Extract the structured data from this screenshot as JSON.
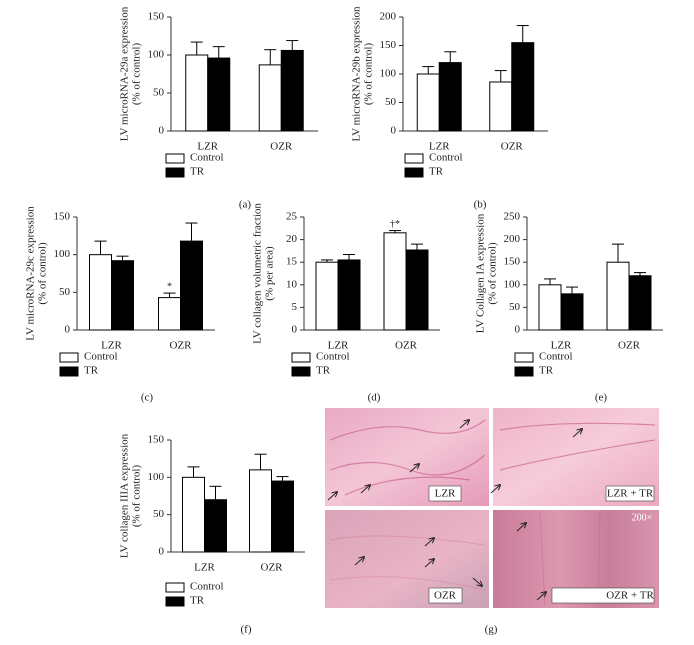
{
  "chart_data": [
    {
      "type": "bar",
      "panel": "(a)",
      "ylabel": [
        "LV microRNA-29a expression",
        "(% of control)"
      ],
      "categories": [
        "LZR",
        "OZR"
      ],
      "series": [
        {
          "name": "Control",
          "color": "#ffffff",
          "values": [
            100,
            87
          ],
          "errors": [
            17,
            20
          ]
        },
        {
          "name": "TR",
          "color": "#000000",
          "values": [
            96,
            106
          ],
          "errors": [
            15,
            13
          ]
        }
      ],
      "ylim": [
        0,
        150
      ],
      "yticks": [
        0,
        50,
        100,
        150
      ]
    },
    {
      "type": "bar",
      "panel": "(b)",
      "ylabel": [
        "LV microRNA-29b expression",
        "(% of control)"
      ],
      "categories": [
        "LZR",
        "OZR"
      ],
      "series": [
        {
          "name": "Control",
          "color": "#ffffff",
          "values": [
            100,
            86
          ],
          "errors": [
            13,
            20
          ]
        },
        {
          "name": "TR",
          "color": "#000000",
          "values": [
            120,
            155
          ],
          "errors": [
            19,
            30
          ]
        }
      ],
      "ylim": [
        0,
        200
      ],
      "yticks": [
        0,
        50,
        100,
        150,
        200
      ]
    },
    {
      "type": "bar",
      "panel": "(c)",
      "ylabel": [
        "LV microRNA-29c expression",
        "(% of control)"
      ],
      "categories": [
        "LZR",
        "OZR"
      ],
      "series": [
        {
          "name": "Control",
          "color": "#ffffff",
          "values": [
            100,
            43
          ],
          "errors": [
            18,
            6
          ]
        },
        {
          "name": "TR",
          "color": "#000000",
          "values": [
            92,
            118
          ],
          "errors": [
            6,
            24
          ]
        }
      ],
      "ylim": [
        0,
        150
      ],
      "yticks": [
        0,
        50,
        100,
        150
      ],
      "annotation": "*"
    },
    {
      "type": "bar",
      "panel": "(d)",
      "ylabel": [
        "LV collagen volumetric fraction",
        "(% per area)"
      ],
      "categories": [
        "LZR",
        "OZR"
      ],
      "series": [
        {
          "name": "Control",
          "color": "#ffffff",
          "values": [
            15,
            21.5
          ],
          "errors": [
            0.5,
            0.5
          ]
        },
        {
          "name": "TR",
          "color": "#000000",
          "values": [
            15.5,
            17.7
          ],
          "errors": [
            1.2,
            1.3
          ]
        }
      ],
      "ylim": [
        0,
        25
      ],
      "yticks": [
        0,
        5,
        10,
        15,
        20,
        25
      ],
      "annotation": "†*"
    },
    {
      "type": "bar",
      "panel": "(e)",
      "ylabel": [
        "LV Collagen IA expression",
        "(% of control)"
      ],
      "categories": [
        "LZR",
        "OZR"
      ],
      "series": [
        {
          "name": "Control",
          "color": "#ffffff",
          "values": [
            100,
            150
          ],
          "errors": [
            13,
            40
          ]
        },
        {
          "name": "TR",
          "color": "#000000",
          "values": [
            80,
            120
          ],
          "errors": [
            15,
            7
          ]
        }
      ],
      "ylim": [
        0,
        250
      ],
      "yticks": [
        0,
        50,
        100,
        150,
        200,
        250
      ]
    },
    {
      "type": "bar",
      "panel": "(f)",
      "ylabel": [
        "LV collagen IIIA expression",
        "(% of control)"
      ],
      "categories": [
        "LZR",
        "OZR"
      ],
      "series": [
        {
          "name": "Control",
          "color": "#ffffff",
          "values": [
            100,
            110
          ],
          "errors": [
            14,
            21
          ]
        },
        {
          "name": "TR",
          "color": "#000000",
          "values": [
            70,
            95
          ],
          "errors": [
            18,
            6
          ]
        }
      ],
      "ylim": [
        0,
        150
      ],
      "yticks": [
        0,
        50,
        100,
        150
      ]
    }
  ],
  "micrographs": {
    "panel": "(g)",
    "labels": [
      "LZR",
      "LZR + TR",
      "OZR",
      "OZR + TR"
    ],
    "scale": "200×"
  }
}
